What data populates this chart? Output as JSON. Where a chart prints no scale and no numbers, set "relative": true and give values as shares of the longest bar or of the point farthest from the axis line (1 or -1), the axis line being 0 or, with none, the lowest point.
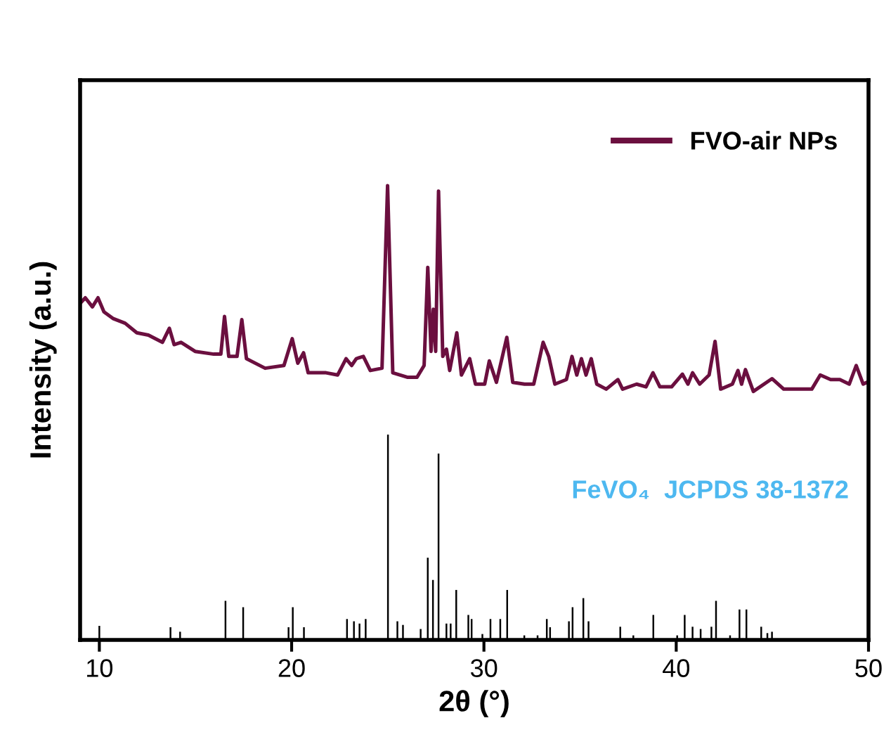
{
  "chart_data": {
    "type": "line",
    "xlabel": "2θ (°)",
    "ylabel": "Intensity (a.u.)",
    "relative": true,
    "xlim": [
      9,
      50
    ],
    "xticks": [
      10,
      20,
      30,
      40,
      50
    ],
    "legend": "top right",
    "grid": false,
    "annotations": [
      "FeVO₄  JCPDS 38-1372"
    ],
    "series": [
      {
        "name": "FVO-air NPs",
        "color": "#6b0f3f",
        "x": [
          9.05,
          9.27,
          9.64,
          9.93,
          10.24,
          10.73,
          11.34,
          11.95,
          12.55,
          13.28,
          13.64,
          13.89,
          14.25,
          14.98,
          15.95,
          16.32,
          16.51,
          16.73,
          17.16,
          17.41,
          17.65,
          18.62,
          19.6,
          20.03,
          20.32,
          20.62,
          20.86,
          21.79,
          22.39,
          22.83,
          23.12,
          23.36,
          23.73,
          24.09,
          24.7,
          24.99,
          25.26,
          26.04,
          26.52,
          26.89,
          27.08,
          27.25,
          27.37,
          27.49,
          27.64,
          27.86,
          28.05,
          28.22,
          28.59,
          28.83,
          29.26,
          29.56,
          30.04,
          30.28,
          30.65,
          31.19,
          31.5,
          32.11,
          32.59,
          33.08,
          33.37,
          33.69,
          34.29,
          34.58,
          34.83,
          35.07,
          35.31,
          35.58,
          35.87,
          36.36,
          36.97,
          37.21,
          37.94,
          38.43,
          38.79,
          39.15,
          39.76,
          40.32,
          40.61,
          40.85,
          41.22,
          41.71,
          42.02,
          42.31,
          42.92,
          43.21,
          43.4,
          43.6,
          44.01,
          44.98,
          45.59,
          47.05,
          47.49,
          48.03,
          48.51,
          49.0,
          49.36,
          49.72,
          49.92
        ],
        "values": [
          0.743,
          0.753,
          0.733,
          0.753,
          0.722,
          0.707,
          0.697,
          0.676,
          0.671,
          0.655,
          0.686,
          0.65,
          0.655,
          0.635,
          0.629,
          0.629,
          0.712,
          0.624,
          0.624,
          0.705,
          0.619,
          0.598,
          0.604,
          0.663,
          0.609,
          0.632,
          0.588,
          0.588,
          0.583,
          0.619,
          0.604,
          0.619,
          0.624,
          0.593,
          0.598,
          1.0,
          0.588,
          0.578,
          0.578,
          0.604,
          0.82,
          0.635,
          0.728,
          0.635,
          0.988,
          0.624,
          0.64,
          0.593,
          0.676,
          0.583,
          0.619,
          0.563,
          0.563,
          0.614,
          0.567,
          0.666,
          0.567,
          0.563,
          0.563,
          0.655,
          0.624,
          0.563,
          0.573,
          0.624,
          0.583,
          0.619,
          0.583,
          0.619,
          0.563,
          0.552,
          0.573,
          0.552,
          0.563,
          0.557,
          0.588,
          0.557,
          0.557,
          0.585,
          0.563,
          0.588,
          0.563,
          0.583,
          0.657,
          0.552,
          0.563,
          0.593,
          0.563,
          0.595,
          0.547,
          0.575,
          0.552,
          0.552,
          0.583,
          0.573,
          0.573,
          0.563,
          0.604,
          0.563,
          0.567
        ]
      },
      {
        "type": "bar",
        "color": "#000000",
        "x": [
          10.0,
          13.7,
          14.2,
          16.56,
          17.48,
          19.84,
          20.06,
          20.64,
          22.88,
          23.24,
          23.53,
          23.85,
          25.01,
          25.5,
          25.79,
          26.71,
          27.08,
          27.35,
          27.64,
          28.05,
          28.27,
          28.56,
          29.19,
          29.36,
          29.92,
          30.34,
          30.85,
          31.21,
          32.1,
          32.79,
          33.27,
          33.44,
          34.42,
          34.61,
          35.17,
          35.44,
          37.09,
          37.77,
          38.81,
          40.05,
          40.44,
          40.85,
          41.27,
          41.83,
          42.07,
          42.8,
          43.29,
          43.65,
          44.42,
          44.74,
          44.98
        ],
        "values": [
          0.031,
          0.028,
          0.018,
          0.086,
          0.072,
          0.028,
          0.072,
          0.028,
          0.046,
          0.041,
          0.036,
          0.046,
          0.452,
          0.041,
          0.033,
          0.024,
          0.181,
          0.132,
          0.41,
          0.036,
          0.036,
          0.11,
          0.055,
          0.046,
          0.013,
          0.046,
          0.046,
          0.11,
          0.01,
          0.01,
          0.046,
          0.028,
          0.041,
          0.072,
          0.092,
          0.041,
          0.029,
          0.01,
          0.055,
          0.01,
          0.055,
          0.029,
          0.024,
          0.029,
          0.086,
          0.01,
          0.067,
          0.067,
          0.029,
          0.015,
          0.018
        ]
      }
    ]
  }
}
